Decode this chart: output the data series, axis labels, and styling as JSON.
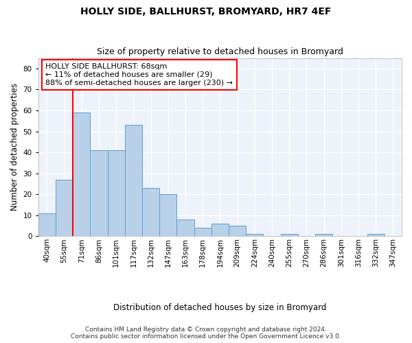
{
  "title": "HOLLY SIDE, BALLHURST, BROMYARD, HR7 4EF",
  "subtitle": "Size of property relative to detached houses in Bromyard",
  "xlabel": "Distribution of detached houses by size in Bromyard",
  "ylabel": "Number of detached properties",
  "bar_labels": [
    "40sqm",
    "55sqm",
    "71sqm",
    "86sqm",
    "101sqm",
    "117sqm",
    "132sqm",
    "147sqm",
    "163sqm",
    "178sqm",
    "194sqm",
    "209sqm",
    "224sqm",
    "240sqm",
    "255sqm",
    "270sqm",
    "286sqm",
    "301sqm",
    "316sqm",
    "332sqm",
    "347sqm"
  ],
  "bar_values": [
    11,
    27,
    59,
    41,
    41,
    53,
    23,
    20,
    8,
    4,
    6,
    5,
    1,
    0,
    1,
    0,
    1,
    0,
    0,
    1,
    0
  ],
  "bar_color": "#b8d0e8",
  "bar_edge_color": "#5a9fd4",
  "ylim": [
    0,
    85
  ],
  "yticks": [
    0,
    10,
    20,
    30,
    40,
    50,
    60,
    70,
    80
  ],
  "property_label": "HOLLY SIDE BALLHURST: 68sqm",
  "annotation_line1": "← 11% of detached houses are smaller (29)",
  "annotation_line2": "88% of semi-detached houses are larger (230) →",
  "vline_x_index": 1.5,
  "footer_line1": "Contains HM Land Registry data © Crown copyright and database right 2024.",
  "footer_line2": "Contains public sector information licensed under the Open Government Licence v3.0.",
  "background_color": "#eef2fa",
  "grid_color": "#ffffff",
  "title_fontsize": 10,
  "subtitle_fontsize": 9,
  "axis_label_fontsize": 8.5,
  "tick_fontsize": 7.5,
  "annotation_fontsize": 8,
  "footer_fontsize": 6.5
}
